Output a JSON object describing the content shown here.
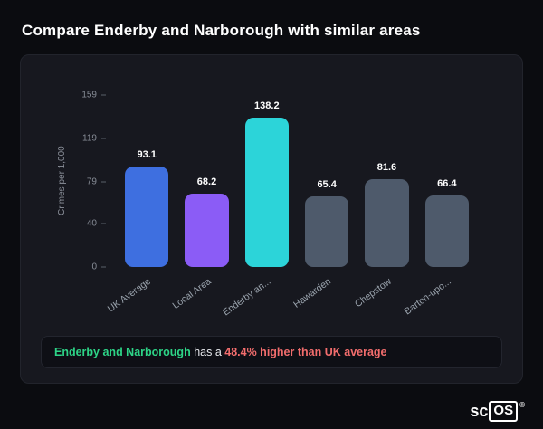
{
  "page": {
    "title": "Compare Enderby and Narborough with similar areas"
  },
  "chart_data": {
    "type": "bar",
    "title": "Compare Enderby and Narborough with similar areas",
    "categories": [
      "UK Average",
      "Local Area",
      "Enderby an...",
      "Hawarden",
      "Chepstow",
      "Barton-upo..."
    ],
    "values": [
      93.1,
      68.2,
      138.2,
      65.4,
      81.6,
      66.4
    ],
    "bar_colors": [
      "#3e6fe0",
      "#8b5cf6",
      "#2cd4d9",
      "#4e5a6b",
      "#4e5a6b",
      "#4e5a6b"
    ],
    "xlabel": "",
    "ylabel": "Crimes per 1,000",
    "yticks": [
      159,
      119,
      79,
      40,
      0
    ],
    "ylim": [
      0,
      159
    ],
    "grid": false,
    "legend": false
  },
  "summary": {
    "subject": "Enderby and Narborough",
    "connector": "has a",
    "stat": "48.4% higher than UK average"
  },
  "logo": {
    "prefix": "sc",
    "boxed": "OS",
    "registered": "®"
  },
  "colors": {
    "accent_green": "#2dd487",
    "accent_red": "#f26d6d",
    "card_bg": "#17181f",
    "page_bg": "#0b0c10"
  }
}
